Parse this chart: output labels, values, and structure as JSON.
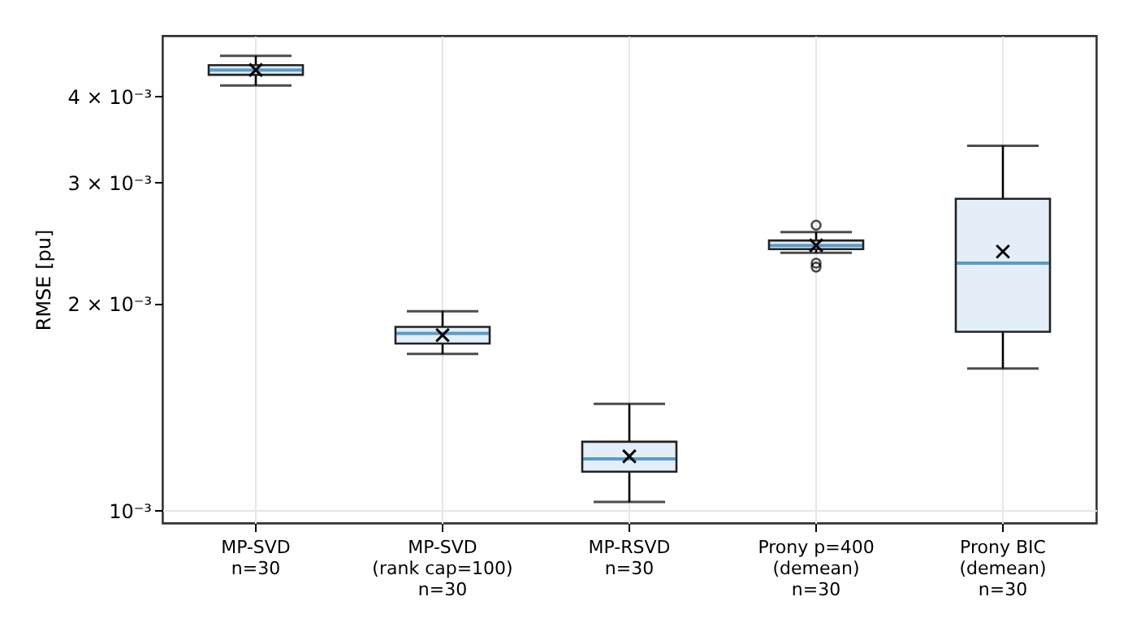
{
  "chart_data": {
    "type": "box",
    "ylabel": "RMSE [pu]",
    "log": "y",
    "grid": true,
    "marker": "cross",
    "categories": [
      "MP-SVD\nn=30",
      "MP-SVD\n(rank cap=100)\nn=30",
      "MP-RSVD\nn=30",
      "Prony p=400\n(demean)\nn=30",
      "Prony BIC\n(demean)\nn=30"
    ],
    "series": [
      {
        "color": "#e3eef9",
        "boxes": [
          {
            "low": 0.00415,
            "q1": 0.0043,
            "median": 0.00437,
            "q3": 0.00444,
            "high": 0.00458,
            "mean": 0.00437
          },
          {
            "low": 0.00169,
            "q1": 0.00175,
            "median": 0.00181,
            "q3": 0.00185,
            "high": 0.00195,
            "mean": 0.0018
          },
          {
            "low": 0.00103,
            "q1": 0.00114,
            "median": 0.00119,
            "q3": 0.00126,
            "high": 0.00143,
            "mean": 0.0012
          },
          {
            "low": 0.00237,
            "q1": 0.0024,
            "median": 0.00243,
            "q3": 0.00247,
            "high": 0.00254,
            "mean": 0.00243,
            "outliers": [
              0.0026,
              0.00229,
              0.00226
            ]
          },
          {
            "low": 0.00161,
            "q1": 0.00182,
            "median": 0.00229,
            "q3": 0.00284,
            "high": 0.00339,
            "mean": 0.00238
          }
        ]
      }
    ],
    "ylim": [
      0.00096,
      0.0049
    ],
    "yticks": [
      {
        "value": 0.001,
        "label": "10⁻³"
      },
      {
        "value": 0.002,
        "label": "2 × 10⁻³"
      },
      {
        "value": 0.003,
        "label": "3 × 10⁻³"
      },
      {
        "value": 0.004,
        "label": "4 × 10⁻³"
      }
    ]
  }
}
